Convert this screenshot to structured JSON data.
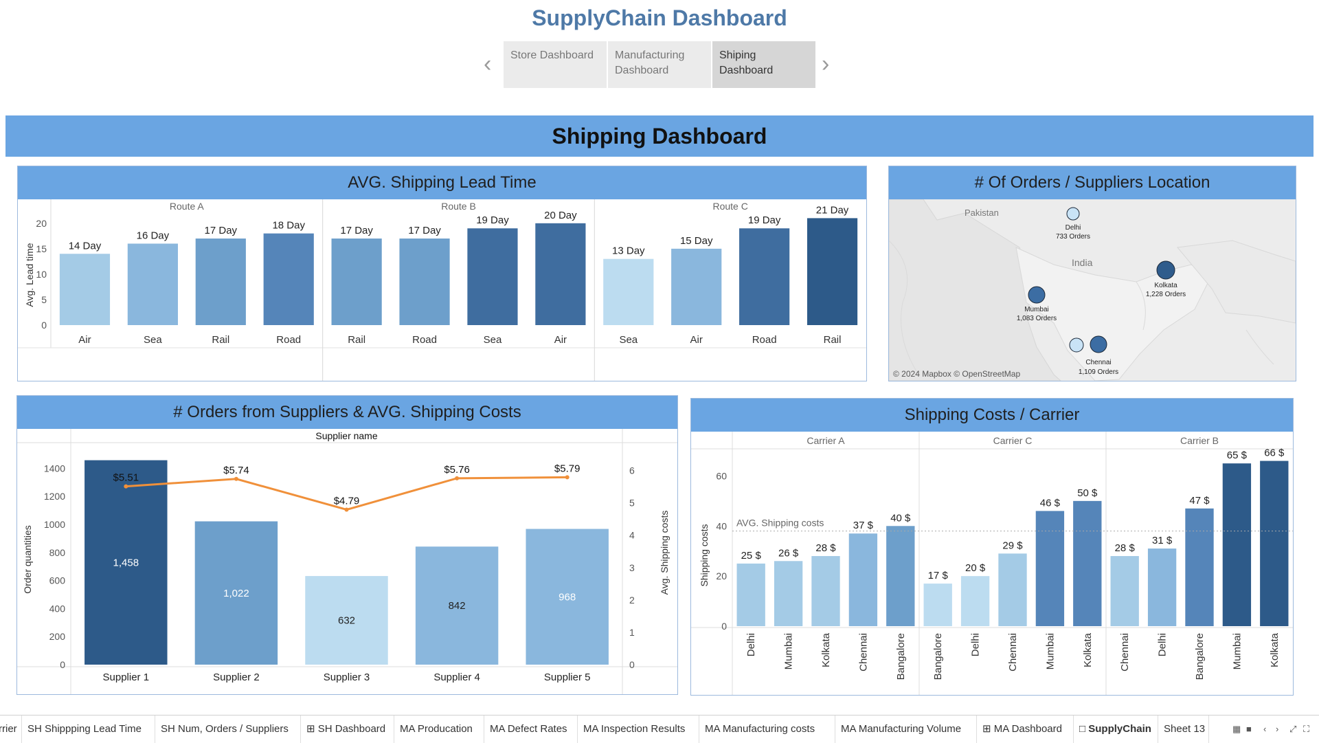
{
  "header": {
    "title": "SupplyChain Dashboard"
  },
  "nav": {
    "tabs": [
      {
        "label": "Store Dashboard",
        "active": false
      },
      {
        "label": "Manufacturing Dashboard",
        "active": false
      },
      {
        "label": "Shiping Dashboard",
        "active": true
      }
    ],
    "prev_icon": "chevron-left-icon",
    "next_icon": "chevron-right-icon"
  },
  "banner": {
    "title": "Shipping Dashboard"
  },
  "colors": {
    "banner": "#6aa5e2",
    "line": "#f0903a",
    "bar_scale": [
      "#bcdcf0",
      "#a4cbe6",
      "#8ab7dd",
      "#6d9fcb",
      "#5585b9",
      "#3f6d9f",
      "#2d5a89"
    ]
  },
  "lead_time": {
    "title": "AVG. Shipping Lead Time",
    "y_axis_label": "Avg. Lead time",
    "y_ticks": [
      "0",
      "5",
      "10",
      "15",
      "20"
    ],
    "routes": [
      {
        "name": "Route A",
        "bars": [
          {
            "mode": "Air",
            "value": 14,
            "label": "14 Day"
          },
          {
            "mode": "Sea",
            "value": 16,
            "label": "16 Day"
          },
          {
            "mode": "Rail",
            "value": 17,
            "label": "17 Day"
          },
          {
            "mode": "Road",
            "value": 18,
            "label": "18 Day"
          }
        ]
      },
      {
        "name": "Route B",
        "bars": [
          {
            "mode": "Rail",
            "value": 17,
            "label": "17 Day"
          },
          {
            "mode": "Road",
            "value": 17,
            "label": "17 Day"
          },
          {
            "mode": "Sea",
            "value": 19,
            "label": "19 Day"
          },
          {
            "mode": "Air",
            "value": 20,
            "label": "20 Day"
          }
        ]
      },
      {
        "name": "Route C",
        "bars": [
          {
            "mode": "Sea",
            "value": 13,
            "label": "13 Day"
          },
          {
            "mode": "Air",
            "value": 15,
            "label": "15 Day"
          },
          {
            "mode": "Road",
            "value": 19,
            "label": "19 Day"
          },
          {
            "mode": "Rail",
            "value": 21,
            "label": "21 Day"
          }
        ]
      }
    ]
  },
  "map": {
    "title": "# Of Orders / Suppliers Location",
    "labels": {
      "pakistan": "Pakistan",
      "india": "India"
    },
    "attribution": "© 2024 Mapbox © OpenStreetMap",
    "markers": [
      {
        "city": "Delhi",
        "orders": "733 Orders"
      },
      {
        "city": "Kolkata",
        "orders": "1,228 Orders"
      },
      {
        "city": "Mumbai",
        "orders": "1,083 Orders"
      },
      {
        "city": "Chennai",
        "orders": "1,109 Orders"
      }
    ]
  },
  "orders": {
    "title": "# Orders from Suppliers & AVG. Shipping Costs",
    "header_label": "Supplier name",
    "y_left_label": "Order quantities",
    "y_right_label": "Avg. Shipping costs",
    "y_left_ticks": [
      "0",
      "200",
      "400",
      "600",
      "800",
      "1000",
      "1200",
      "1400"
    ],
    "y_right_ticks": [
      "0",
      "1",
      "2",
      "3",
      "4",
      "5",
      "6"
    ],
    "suppliers": [
      {
        "name": "Supplier 1",
        "orders": 1458,
        "orders_label": "1,458",
        "cost": 5.51,
        "cost_label": "$5.51"
      },
      {
        "name": "Supplier 2",
        "orders": 1022,
        "orders_label": "1,022",
        "cost": 5.74,
        "cost_label": "$5.74"
      },
      {
        "name": "Supplier 3",
        "orders": 632,
        "orders_label": "632",
        "cost": 4.79,
        "cost_label": "$4.79"
      },
      {
        "name": "Supplier 4",
        "orders": 842,
        "orders_label": "842",
        "cost": 5.76,
        "cost_label": "$5.76"
      },
      {
        "name": "Supplier 5",
        "orders": 968,
        "orders_label": "968",
        "cost": 5.79,
        "cost_label": "$5.79"
      }
    ]
  },
  "carrier": {
    "title": "Shipping Costs / Carrier",
    "y_axis_label": "Shipping costs",
    "y_ticks": [
      "0",
      "20",
      "40",
      "60"
    ],
    "ref_label": "AVG. Shipping costs",
    "ref_value": 38,
    "groups": [
      {
        "name": "Carrier A",
        "bars": [
          {
            "city": "Delhi",
            "value": 25,
            "label": "25 $"
          },
          {
            "city": "Mumbai",
            "value": 26,
            "label": "26 $"
          },
          {
            "city": "Kolkata",
            "value": 28,
            "label": "28 $"
          },
          {
            "city": "Chennai",
            "value": 37,
            "label": "37 $"
          },
          {
            "city": "Bangalore",
            "value": 40,
            "label": "40 $"
          }
        ]
      },
      {
        "name": "Carrier C",
        "bars": [
          {
            "city": "Bangalore",
            "value": 17,
            "label": "17 $"
          },
          {
            "city": "Delhi",
            "value": 20,
            "label": "20 $"
          },
          {
            "city": "Chennai",
            "value": 29,
            "label": "29 $"
          },
          {
            "city": "Mumbai",
            "value": 46,
            "label": "46 $"
          },
          {
            "city": "Kolkata",
            "value": 50,
            "label": "50 $"
          }
        ]
      },
      {
        "name": "Carrier B",
        "bars": [
          {
            "city": "Chennai",
            "value": 28,
            "label": "28 $"
          },
          {
            "city": "Delhi",
            "value": 31,
            "label": "31 $"
          },
          {
            "city": "Bangalore",
            "value": 47,
            "label": "47 $"
          },
          {
            "city": "Mumbai",
            "value": 65,
            "label": "65 $"
          },
          {
            "city": "Kolkata",
            "value": 66,
            "label": "66 $"
          }
        ]
      }
    ]
  },
  "sheet_tabs": [
    {
      "label": "rrier",
      "icon": "",
      "active": false
    },
    {
      "label": "SH Shippping Lead Time",
      "icon": "",
      "active": false
    },
    {
      "label": "SH Num, Orders / Suppliers",
      "icon": "",
      "active": false
    },
    {
      "label": "SH Dashboard",
      "icon": "grid-icon",
      "active": false
    },
    {
      "label": "MA Producation",
      "icon": "",
      "active": false
    },
    {
      "label": "MA Defect Rates",
      "icon": "",
      "active": false
    },
    {
      "label": "MA Inspection Results",
      "icon": "",
      "active": false
    },
    {
      "label": "MA Manufacturing costs",
      "icon": "",
      "active": false
    },
    {
      "label": "MA Manufacturing Volume",
      "icon": "",
      "active": false
    },
    {
      "label": "MA Dashboard",
      "icon": "grid-icon",
      "active": false
    },
    {
      "label": "SupplyChain",
      "icon": "story-icon",
      "active": true
    },
    {
      "label": "Sheet 13",
      "icon": "",
      "active": false
    }
  ],
  "chart_data": [
    {
      "type": "bar",
      "title": "AVG. Shipping Lead Time",
      "ylabel": "Avg. Lead time",
      "ylim": [
        0,
        22
      ],
      "categories": [
        "Route A / Air",
        "Route A / Sea",
        "Route A / Rail",
        "Route A / Road",
        "Route B / Rail",
        "Route B / Road",
        "Route B / Sea",
        "Route B / Air",
        "Route C / Sea",
        "Route C / Air",
        "Route C / Road",
        "Route C / Rail"
      ],
      "values": [
        14,
        16,
        17,
        18,
        17,
        17,
        19,
        20,
        13,
        15,
        19,
        21
      ]
    },
    {
      "type": "bar",
      "title": "# Orders from Suppliers & AVG. Shipping Costs",
      "xlabel": "Supplier name",
      "categories": [
        "Supplier 1",
        "Supplier 2",
        "Supplier 3",
        "Supplier 4",
        "Supplier 5"
      ],
      "series": [
        {
          "name": "Order quantities",
          "type": "bar",
          "values": [
            1458,
            1022,
            632,
            842,
            968
          ]
        },
        {
          "name": "Avg. Shipping costs",
          "type": "line",
          "values": [
            5.51,
            5.74,
            4.79,
            5.76,
            5.79
          ]
        }
      ],
      "ylim": [
        0,
        1500
      ],
      "y2lim": [
        0,
        6.5
      ]
    },
    {
      "type": "bar",
      "title": "Shipping Costs / Carrier",
      "ylabel": "Shipping costs",
      "ylim": [
        0,
        70
      ],
      "categories": [
        "Carrier A / Delhi",
        "Carrier A / Mumbai",
        "Carrier A / Kolkata",
        "Carrier A / Chennai",
        "Carrier A / Bangalore",
        "Carrier C / Bangalore",
        "Carrier C / Delhi",
        "Carrier C / Chennai",
        "Carrier C / Mumbai",
        "Carrier C / Kolkata",
        "Carrier B / Chennai",
        "Carrier B / Delhi",
        "Carrier B / Bangalore",
        "Carrier B / Mumbai",
        "Carrier B / Kolkata"
      ],
      "values": [
        25,
        26,
        28,
        37,
        40,
        17,
        20,
        29,
        46,
        50,
        28,
        31,
        47,
        65,
        66
      ],
      "reference_line": {
        "label": "AVG. Shipping costs",
        "value": 38
      }
    }
  ]
}
